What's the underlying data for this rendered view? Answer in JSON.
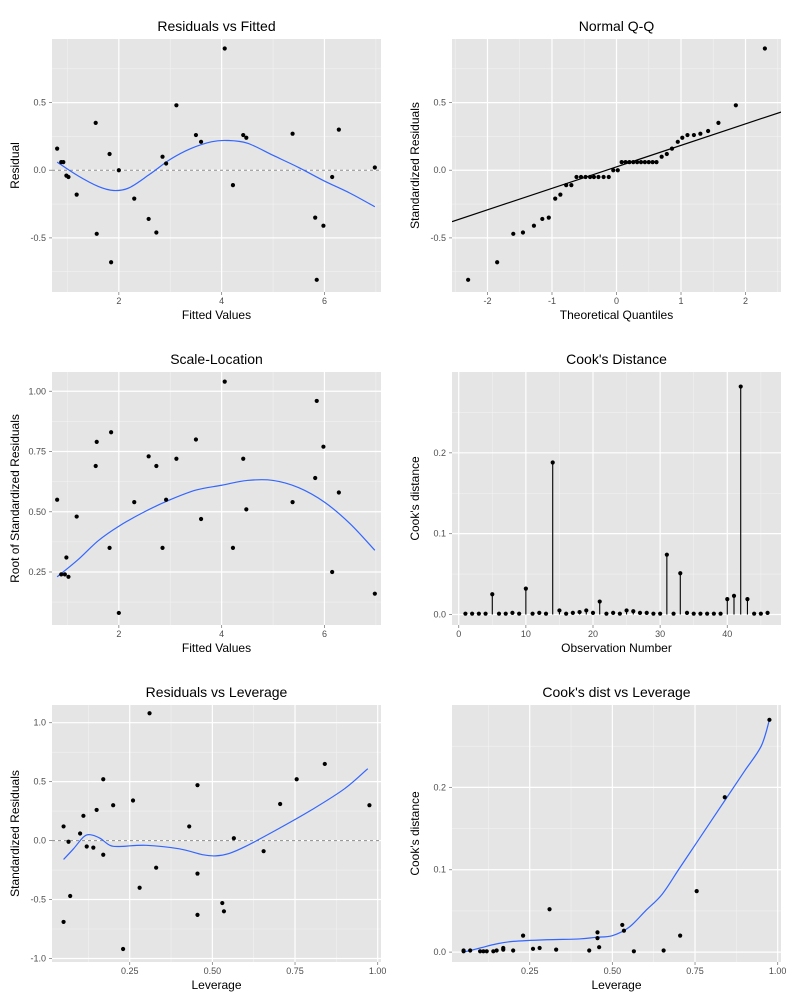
{
  "chart_data": [
    {
      "type": "scatter",
      "title": "Residuals vs Fitted",
      "xlabel": "Fitted Values",
      "ylabel": "Residual",
      "xlim": [
        0.7,
        7.1
      ],
      "ylim": [
        -0.9,
        0.97
      ],
      "xticks": [
        2,
        4,
        6
      ],
      "yticks": [
        -0.5,
        0.0,
        0.5
      ],
      "ytick_labels": [
        "-0.5",
        "0.0",
        "0.5"
      ],
      "hline": 0,
      "points": [
        [
          0.8,
          0.16
        ],
        [
          0.88,
          0.06
        ],
        [
          0.92,
          0.06
        ],
        [
          0.98,
          -0.04
        ],
        [
          1.02,
          -0.05
        ],
        [
          1.18,
          -0.18
        ],
        [
          1.55,
          0.35
        ],
        [
          1.57,
          -0.47
        ],
        [
          1.82,
          0.12
        ],
        [
          1.85,
          -0.68
        ],
        [
          2.0,
          0.0
        ],
        [
          2.3,
          -0.21
        ],
        [
          2.58,
          -0.36
        ],
        [
          2.73,
          -0.46
        ],
        [
          2.85,
          0.1
        ],
        [
          2.92,
          0.05
        ],
        [
          3.12,
          0.48
        ],
        [
          3.5,
          0.26
        ],
        [
          3.6,
          0.21
        ],
        [
          4.06,
          0.9
        ],
        [
          4.22,
          -0.11
        ],
        [
          4.42,
          0.26
        ],
        [
          4.48,
          0.24
        ],
        [
          5.38,
          0.27
        ],
        [
          5.82,
          -0.35
        ],
        [
          5.85,
          -0.81
        ],
        [
          5.98,
          -0.41
        ],
        [
          6.15,
          -0.05
        ],
        [
          6.28,
          0.3
        ],
        [
          6.98,
          0.02
        ]
      ],
      "smooth": [
        [
          0.8,
          0.06
        ],
        [
          1.2,
          -0.04
        ],
        [
          1.6,
          -0.12
        ],
        [
          1.9,
          -0.15
        ],
        [
          2.2,
          -0.13
        ],
        [
          2.6,
          -0.03
        ],
        [
          3.0,
          0.08
        ],
        [
          3.4,
          0.16
        ],
        [
          3.8,
          0.21
        ],
        [
          4.1,
          0.22
        ],
        [
          4.5,
          0.2
        ],
        [
          5.0,
          0.11
        ],
        [
          5.5,
          0.02
        ],
        [
          6.0,
          -0.08
        ],
        [
          6.5,
          -0.17
        ],
        [
          6.98,
          -0.27
        ]
      ]
    },
    {
      "type": "scatter",
      "title": "Normal Q-Q",
      "xlabel": "Theoretical Quantiles",
      "ylabel": "Standardized Residuals",
      "xlim": [
        -2.55,
        2.55
      ],
      "ylim": [
        -0.9,
        0.97
      ],
      "xticks": [
        -2,
        -1,
        0,
        1,
        2
      ],
      "yticks": [
        -0.5,
        0.0,
        0.5
      ],
      "ytick_labels": [
        "-0.5",
        "0.0",
        "0.5"
      ],
      "ref_line": [
        [
          -2.55,
          -0.38
        ],
        [
          2.55,
          0.43
        ]
      ],
      "points": [
        [
          -2.3,
          -0.81
        ],
        [
          -1.85,
          -0.68
        ],
        [
          -1.6,
          -0.47
        ],
        [
          -1.45,
          -0.46
        ],
        [
          -1.28,
          -0.41
        ],
        [
          -1.15,
          -0.36
        ],
        [
          -1.05,
          -0.35
        ],
        [
          -0.95,
          -0.21
        ],
        [
          -0.87,
          -0.18
        ],
        [
          -0.78,
          -0.11
        ],
        [
          -0.7,
          -0.11
        ],
        [
          -0.62,
          -0.05
        ],
        [
          -0.55,
          -0.05
        ],
        [
          -0.48,
          -0.05
        ],
        [
          -0.41,
          -0.05
        ],
        [
          -0.35,
          -0.05
        ],
        [
          -0.28,
          -0.05
        ],
        [
          -0.2,
          -0.05
        ],
        [
          -0.12,
          -0.05
        ],
        [
          -0.05,
          0.0
        ],
        [
          0.02,
          0.0
        ],
        [
          0.08,
          0.06
        ],
        [
          0.14,
          0.06
        ],
        [
          0.2,
          0.06
        ],
        [
          0.26,
          0.06
        ],
        [
          0.32,
          0.06
        ],
        [
          0.38,
          0.06
        ],
        [
          0.44,
          0.06
        ],
        [
          0.5,
          0.06
        ],
        [
          0.56,
          0.06
        ],
        [
          0.62,
          0.06
        ],
        [
          0.7,
          0.1
        ],
        [
          0.78,
          0.12
        ],
        [
          0.86,
          0.16
        ],
        [
          0.95,
          0.21
        ],
        [
          1.02,
          0.24
        ],
        [
          1.1,
          0.26
        ],
        [
          1.2,
          0.26
        ],
        [
          1.3,
          0.27
        ],
        [
          1.42,
          0.29
        ],
        [
          1.58,
          0.35
        ],
        [
          1.85,
          0.48
        ],
        [
          2.3,
          0.9
        ]
      ]
    },
    {
      "type": "scatter",
      "title": "Scale-Location",
      "xlabel": "Fitted Values",
      "ylabel": "Root of Standardized Residuals",
      "xlim": [
        0.7,
        7.1
      ],
      "ylim": [
        0.03,
        1.08
      ],
      "xticks": [
        2,
        4,
        6
      ],
      "yticks": [
        0.25,
        0.5,
        0.75,
        1.0
      ],
      "ytick_labels": [
        "0.25",
        "0.50",
        "0.75",
        "1.00"
      ],
      "points": [
        [
          0.8,
          0.55
        ],
        [
          0.88,
          0.24
        ],
        [
          0.95,
          0.24
        ],
        [
          0.98,
          0.31
        ],
        [
          1.02,
          0.23
        ],
        [
          1.18,
          0.48
        ],
        [
          1.55,
          0.69
        ],
        [
          1.57,
          0.79
        ],
        [
          1.82,
          0.35
        ],
        [
          1.85,
          0.83
        ],
        [
          2.0,
          0.08
        ],
        [
          2.3,
          0.54
        ],
        [
          2.58,
          0.73
        ],
        [
          2.73,
          0.69
        ],
        [
          2.85,
          0.35
        ],
        [
          2.92,
          0.55
        ],
        [
          3.12,
          0.72
        ],
        [
          3.5,
          0.8
        ],
        [
          3.6,
          0.47
        ],
        [
          4.06,
          1.04
        ],
        [
          4.22,
          0.35
        ],
        [
          4.42,
          0.72
        ],
        [
          4.48,
          0.51
        ],
        [
          5.38,
          0.54
        ],
        [
          5.82,
          0.64
        ],
        [
          5.85,
          0.96
        ],
        [
          5.98,
          0.77
        ],
        [
          6.15,
          0.25
        ],
        [
          6.28,
          0.58
        ],
        [
          6.98,
          0.16
        ]
      ],
      "smooth": [
        [
          0.8,
          0.23
        ],
        [
          1.2,
          0.3
        ],
        [
          1.6,
          0.38
        ],
        [
          2.0,
          0.44
        ],
        [
          2.5,
          0.5
        ],
        [
          3.0,
          0.55
        ],
        [
          3.5,
          0.59
        ],
        [
          4.0,
          0.61
        ],
        [
          4.5,
          0.63
        ],
        [
          5.0,
          0.63
        ],
        [
          5.5,
          0.6
        ],
        [
          6.0,
          0.54
        ],
        [
          6.5,
          0.45
        ],
        [
          6.98,
          0.34
        ]
      ]
    },
    {
      "type": "stem",
      "title": "Cook's Distance",
      "xlabel": "Observation Number",
      "ylabel": "Cook's distance",
      "xlim": [
        -1,
        48
      ],
      "ylim": [
        -0.013,
        0.3
      ],
      "xticks": [
        0,
        10,
        20,
        30,
        40
      ],
      "yticks": [
        0.0,
        0.1,
        0.2
      ],
      "ytick_labels": [
        "0.0",
        "0.1",
        "0.2"
      ],
      "x": [
        1,
        2,
        3,
        4,
        5,
        6,
        7,
        8,
        9,
        10,
        11,
        12,
        13,
        14,
        15,
        16,
        17,
        18,
        19,
        20,
        21,
        22,
        23,
        24,
        25,
        26,
        27,
        28,
        29,
        30,
        31,
        32,
        33,
        34,
        35,
        36,
        37,
        38,
        39,
        40,
        41,
        42,
        43,
        44,
        45,
        46
      ],
      "values": [
        0.001,
        0.001,
        0.001,
        0.001,
        0.025,
        0.001,
        0.001,
        0.002,
        0.001,
        0.032,
        0.001,
        0.002,
        0.001,
        0.188,
        0.005,
        0.001,
        0.002,
        0.003,
        0.005,
        0.002,
        0.016,
        0.001,
        0.002,
        0.001,
        0.005,
        0.004,
        0.002,
        0.002,
        0.001,
        0.001,
        0.074,
        0.001,
        0.051,
        0.002,
        0.001,
        0.001,
        0.001,
        0.001,
        0.001,
        0.019,
        0.023,
        0.282,
        0.019,
        0.001,
        0.001,
        0.002
      ]
    },
    {
      "type": "scatter",
      "title": "Residuals vs Leverage",
      "xlabel": "Leverage",
      "ylabel": "Standardized Residuals",
      "xlim": [
        0.015,
        1.01
      ],
      "ylim": [
        -1.03,
        1.15
      ],
      "xticks": [
        0.25,
        0.5,
        0.75,
        1.0
      ],
      "xtick_labels": [
        "0.25",
        "0.50",
        "0.75",
        "1.00"
      ],
      "yticks": [
        -1.0,
        -0.5,
        0.0,
        0.5,
        1.0
      ],
      "ytick_labels": [
        "-1.0",
        "-0.5",
        "0.0",
        "0.5",
        "1.0"
      ],
      "hline": 0,
      "points": [
        [
          0.05,
          0.12
        ],
        [
          0.05,
          -0.69
        ],
        [
          0.065,
          -0.01
        ],
        [
          0.07,
          -0.47
        ],
        [
          0.1,
          0.06
        ],
        [
          0.11,
          0.21
        ],
        [
          0.12,
          -0.05
        ],
        [
          0.14,
          -0.06
        ],
        [
          0.15,
          0.26
        ],
        [
          0.17,
          0.52
        ],
        [
          0.17,
          -0.12
        ],
        [
          0.2,
          0.3
        ],
        [
          0.23,
          -0.92
        ],
        [
          0.26,
          0.34
        ],
        [
          0.28,
          -0.4
        ],
        [
          0.31,
          1.08
        ],
        [
          0.33,
          -0.23
        ],
        [
          0.43,
          0.12
        ],
        [
          0.455,
          -0.28
        ],
        [
          0.455,
          -0.63
        ],
        [
          0.455,
          0.47
        ],
        [
          0.53,
          -0.53
        ],
        [
          0.535,
          -0.6
        ],
        [
          0.565,
          0.02
        ],
        [
          0.655,
          -0.09
        ],
        [
          0.705,
          0.31
        ],
        [
          0.755,
          0.52
        ],
        [
          0.84,
          0.65
        ],
        [
          0.975,
          0.3
        ]
      ],
      "smooth": [
        [
          0.05,
          -0.16
        ],
        [
          0.08,
          -0.07
        ],
        [
          0.11,
          0.03
        ],
        [
          0.13,
          0.05
        ],
        [
          0.16,
          0.02
        ],
        [
          0.19,
          -0.04
        ],
        [
          0.22,
          -0.05
        ],
        [
          0.3,
          -0.04
        ],
        [
          0.4,
          -0.07
        ],
        [
          0.47,
          -0.12
        ],
        [
          0.51,
          -0.13
        ],
        [
          0.55,
          -0.11
        ],
        [
          0.6,
          -0.05
        ],
        [
          0.7,
          0.1
        ],
        [
          0.8,
          0.26
        ],
        [
          0.9,
          0.44
        ],
        [
          0.97,
          0.61
        ]
      ]
    },
    {
      "type": "scatter",
      "title": "Cook's dist vs Leverage",
      "xlabel": "Leverage",
      "ylabel": "Cook's distance",
      "xlim": [
        0.015,
        1.01
      ],
      "ylim": [
        -0.012,
        0.3
      ],
      "xticks": [
        0.25,
        0.5,
        0.75,
        1.0
      ],
      "xtick_labels": [
        "0.25",
        "0.50",
        "0.75",
        "1.00"
      ],
      "yticks": [
        0.0,
        0.1,
        0.2
      ],
      "ytick_labels": [
        "0.0",
        "0.1",
        "0.2"
      ],
      "points": [
        [
          0.05,
          0.001
        ],
        [
          0.05,
          0.002
        ],
        [
          0.07,
          0.002
        ],
        [
          0.1,
          0.001
        ],
        [
          0.11,
          0.001
        ],
        [
          0.12,
          0.001
        ],
        [
          0.14,
          0.001
        ],
        [
          0.15,
          0.002
        ],
        [
          0.17,
          0.003
        ],
        [
          0.17,
          0.005
        ],
        [
          0.2,
          0.002
        ],
        [
          0.23,
          0.02
        ],
        [
          0.26,
          0.004
        ],
        [
          0.28,
          0.005
        ],
        [
          0.31,
          0.052
        ],
        [
          0.33,
          0.003
        ],
        [
          0.43,
          0.002
        ],
        [
          0.455,
          0.024
        ],
        [
          0.455,
          0.017
        ],
        [
          0.46,
          0.006
        ],
        [
          0.53,
          0.033
        ],
        [
          0.535,
          0.026
        ],
        [
          0.565,
          0.001
        ],
        [
          0.655,
          0.002
        ],
        [
          0.705,
          0.02
        ],
        [
          0.755,
          0.074
        ],
        [
          0.84,
          0.188
        ],
        [
          0.975,
          0.282
        ]
      ],
      "smooth": [
        [
          0.05,
          0.0
        ],
        [
          0.1,
          0.005
        ],
        [
          0.15,
          0.01
        ],
        [
          0.2,
          0.013
        ],
        [
          0.3,
          0.015
        ],
        [
          0.4,
          0.016
        ],
        [
          0.45,
          0.018
        ],
        [
          0.5,
          0.02
        ],
        [
          0.55,
          0.03
        ],
        [
          0.6,
          0.05
        ],
        [
          0.65,
          0.07
        ],
        [
          0.7,
          0.1
        ],
        [
          0.75,
          0.13
        ],
        [
          0.8,
          0.16
        ],
        [
          0.85,
          0.19
        ],
        [
          0.9,
          0.22
        ],
        [
          0.95,
          0.25
        ],
        [
          0.975,
          0.282
        ]
      ]
    }
  ]
}
